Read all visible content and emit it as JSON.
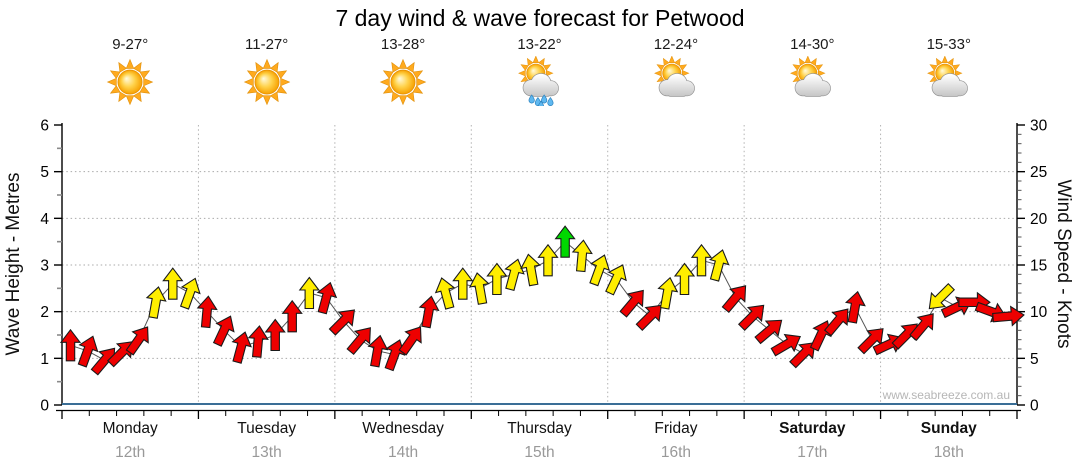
{
  "header": {
    "title": "7 day wind & wave forecast for Petwood"
  },
  "days": [
    {
      "name": "Monday",
      "date": "12th",
      "temps": "9-27°",
      "icon": "sunny",
      "weekend": false
    },
    {
      "name": "Tuesday",
      "date": "13th",
      "temps": "11-27°",
      "icon": "sunny",
      "weekend": false
    },
    {
      "name": "Wednesday",
      "date": "14th",
      "temps": "13-28°",
      "icon": "sunny",
      "weekend": false
    },
    {
      "name": "Thursday",
      "date": "15th",
      "temps": "13-22°",
      "icon": "partly-cloudy-rain",
      "weekend": false
    },
    {
      "name": "Friday",
      "date": "16th",
      "temps": "12-24°",
      "icon": "partly-cloudy",
      "weekend": false
    },
    {
      "name": "Saturday",
      "date": "17th",
      "temps": "14-30°",
      "icon": "partly-cloudy",
      "weekend": true
    },
    {
      "name": "Sunday",
      "date": "18th",
      "temps": "15-33°",
      "icon": "partly-cloudy",
      "weekend": true
    }
  ],
  "watermark": "www.seabreeze.com.au",
  "chart_data": {
    "type": "line",
    "subtype": "wind-direction-arrow-forecast",
    "title": "7 day wind & wave forecast for Petwood",
    "left_axis": {
      "label": "Wave Height - Metres",
      "min": 0,
      "max": 6,
      "major_tick": 1,
      "minor_tick": 0.5,
      "gridlines": [
        1,
        2,
        3,
        4,
        5
      ]
    },
    "right_axis": {
      "label": "Wind Speed - Knots",
      "min": 0,
      "max": 30,
      "major_tick": 5,
      "minor_tick": 1,
      "tick_labels": [
        0,
        5,
        10,
        15,
        20,
        25,
        30
      ]
    },
    "x_axis": {
      "categories": [
        "Monday 12th",
        "Tuesday 13th",
        "Wednesday 14th",
        "Thursday 15th",
        "Friday 16th",
        "Saturday 17th",
        "Sunday 18th"
      ],
      "points_per_day": 8,
      "vertical_gridlines": "day-boundaries"
    },
    "arrow_colors": {
      "R": "#ee0000",
      "Y": "#ffee00",
      "G": "#00d800"
    },
    "line_color": "#555555",
    "series": [
      {
        "name": "Wind speed (knots) with wind-direction arrows",
        "values": [
          6.4,
          5.8,
          4.8,
          5.6,
          7.0,
          11.0,
          13.0,
          12.0,
          10.0,
          8.0,
          6.2,
          6.8,
          7.5,
          9.5,
          12.0,
          11.5,
          9.0,
          7.0,
          5.8,
          5.4,
          7.0,
          10.0,
          12.0,
          13.0,
          12.5,
          13.5,
          14.0,
          14.5,
          15.5,
          17.5,
          16.0,
          14.5,
          13.5,
          11.0,
          9.5,
          12.0,
          13.5,
          15.5,
          15.0,
          11.5,
          9.5,
          8.0,
          6.5,
          5.5,
          7.5,
          9.0,
          10.5,
          7.0,
          6.5,
          7.5,
          8.5,
          11.5,
          10.5,
          11.0,
          10.0,
          9.5
        ],
        "directions_deg_clockwise_from_north": [
          0,
          20,
          40,
          45,
          35,
          10,
          0,
          20,
          5,
          25,
          15,
          5,
          0,
          0,
          0,
          15,
          45,
          40,
          10,
          20,
          35,
          10,
          -15,
          0,
          -10,
          0,
          15,
          -10,
          0,
          0,
          5,
          20,
          25,
          40,
          45,
          10,
          0,
          0,
          15,
          40,
          45,
          50,
          60,
          45,
          25,
          40,
          10,
          45,
          65,
          45,
          40,
          225,
          65,
          90,
          110,
          85
        ],
        "colors": [
          "R",
          "R",
          "R",
          "R",
          "R",
          "Y",
          "Y",
          "Y",
          "R",
          "R",
          "R",
          "R",
          "R",
          "R",
          "Y",
          "R",
          "R",
          "R",
          "R",
          "R",
          "R",
          "R",
          "Y",
          "Y",
          "Y",
          "Y",
          "Y",
          "Y",
          "Y",
          "G",
          "Y",
          "Y",
          "Y",
          "R",
          "R",
          "Y",
          "Y",
          "Y",
          "Y",
          "R",
          "R",
          "R",
          "R",
          "R",
          "R",
          "R",
          "R",
          "R",
          "R",
          "R",
          "R",
          "Y",
          "R",
          "R",
          "R",
          "R"
        ]
      }
    ]
  }
}
